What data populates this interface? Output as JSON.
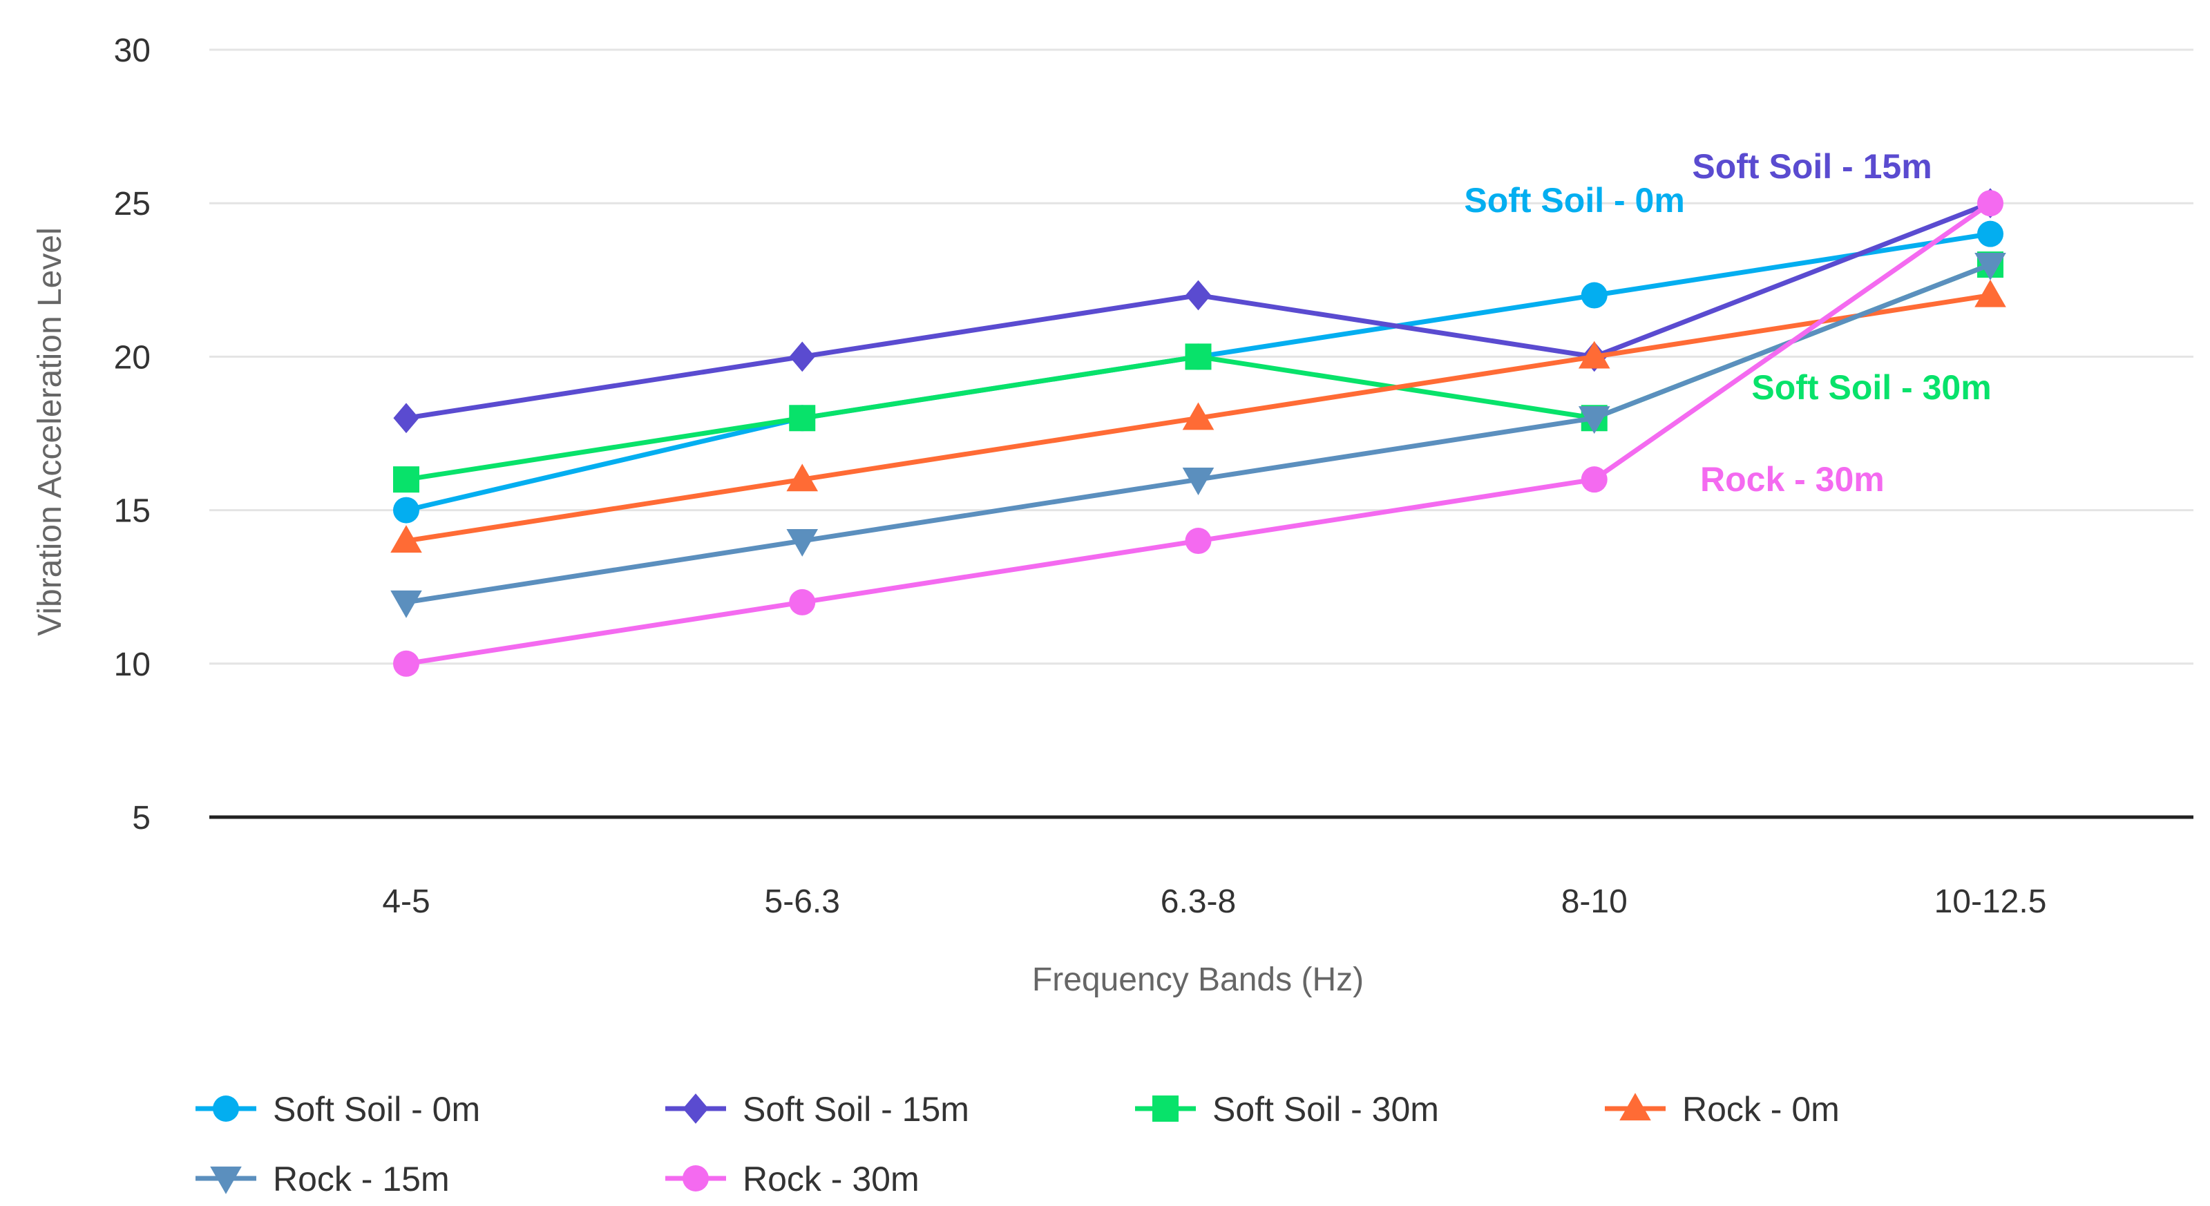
{
  "chart_data": {
    "type": "line",
    "title": "",
    "xlabel": "Frequency Bands (Hz)",
    "ylabel": "Vibration Acceleration Level",
    "categories": [
      "4-5",
      "5-6.3",
      "6.3-8",
      "8-10",
      "10-12.5"
    ],
    "ylim": [
      5,
      30
    ],
    "yticks": [
      5,
      10,
      15,
      20,
      25,
      30
    ],
    "grid": true,
    "legend_position": "bottom",
    "series": [
      {
        "name": "Soft Soil - 0m",
        "values": [
          15,
          18,
          20,
          22,
          24
        ],
        "color": "#03aef0",
        "marker": "circle"
      },
      {
        "name": "Soft Soil - 15m",
        "values": [
          18,
          20,
          22,
          20,
          25
        ],
        "color": "#5a4bd0",
        "marker": "diamond"
      },
      {
        "name": "Soft Soil - 30m",
        "values": [
          16,
          18,
          20,
          18,
          23
        ],
        "color": "#08e26a",
        "marker": "square"
      },
      {
        "name": "Rock - 0m",
        "values": [
          14,
          16,
          18,
          20,
          22
        ],
        "color": "#ff6b35",
        "marker": "triangle-up"
      },
      {
        "name": "Rock - 15m",
        "values": [
          12,
          14,
          16,
          18,
          23
        ],
        "color": "#5b8fbe",
        "marker": "triangle-down"
      },
      {
        "name": "Rock - 30m",
        "values": [
          10,
          12,
          14,
          16,
          25
        ],
        "color": "#f46af0",
        "marker": "circle"
      }
    ],
    "annotations": [
      {
        "text": "Soft Soil - 15m",
        "series": "Soft Soil - 15m",
        "x": 4.55,
        "y": 26.2
      },
      {
        "text": "Soft Soil - 0m",
        "series": "Soft Soil - 0m",
        "x": 3.95,
        "y": 25.1
      },
      {
        "text": "Soft Soil - 30m",
        "series": "Soft Soil - 30m",
        "x": 4.7,
        "y": 19.0
      },
      {
        "text": "Rock - 30m",
        "series": "Rock - 30m",
        "x": 4.5,
        "y": 16.0
      }
    ]
  }
}
